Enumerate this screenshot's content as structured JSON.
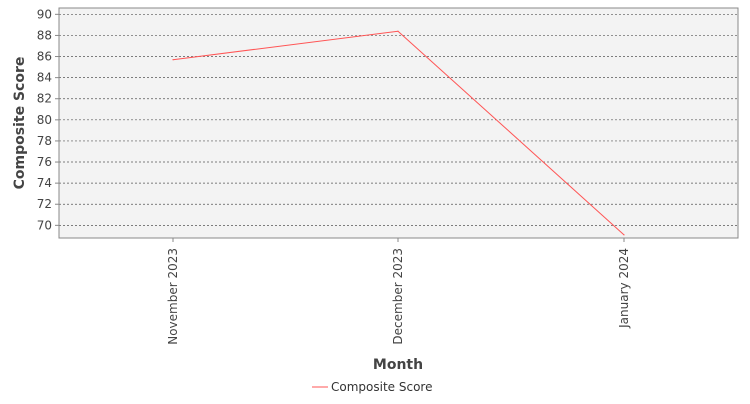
{
  "chart_data": {
    "type": "line",
    "title": "",
    "xlabel": "Month",
    "ylabel": "Composite Score",
    "categories": [
      "November 2023",
      "December 2023",
      "January 2024"
    ],
    "series": [
      {
        "name": "Composite Score",
        "values": [
          85.7,
          88.4,
          69.1
        ],
        "color": "#ff5555"
      }
    ],
    "ylim": [
      68.8,
      90.6
    ],
    "yticks": [
      70,
      72,
      74,
      76,
      78,
      80,
      82,
      84,
      86,
      88,
      90
    ],
    "grid": true,
    "legend_position": "bottom-center",
    "plot_background": "#f3f3f3",
    "grid_color": "#555555"
  }
}
